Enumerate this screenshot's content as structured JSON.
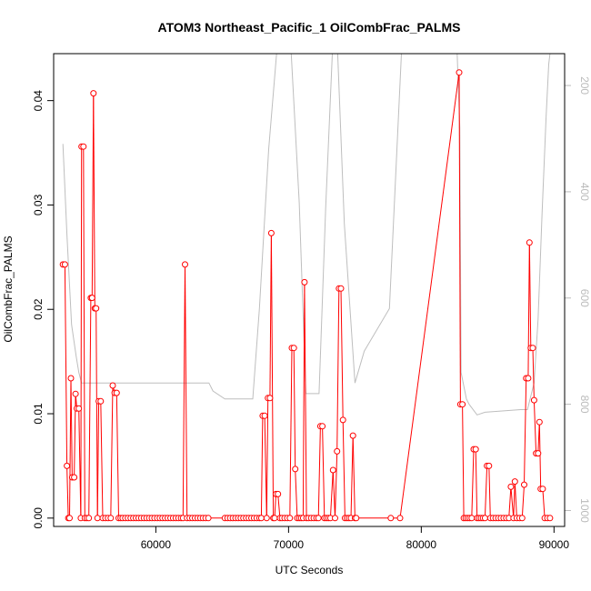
{
  "chart_data": {
    "type": "line",
    "title": "ATOM3 Northeast_Pacific_1 OilCombFrac_PALMS",
    "xlabel": "UTC Seconds",
    "ylabel": "OilCombFrac_PALMS",
    "xlim": [
      52300,
      90800
    ],
    "ylim": [
      -0.0008,
      0.0445
    ],
    "x_ticks": [
      60000,
      70000,
      80000,
      90000
    ],
    "x_tick_labels": [
      "60000",
      "70000",
      "80000",
      "90000"
    ],
    "y_ticks": [
      0.0,
      0.01,
      0.02,
      0.03,
      0.04
    ],
    "y_tick_labels": [
      "0.00",
      "0.01",
      "0.02",
      "0.03",
      "0.04"
    ],
    "y2_ticks": [
      200,
      400,
      600,
      800,
      1000
    ],
    "y2_tick_labels": [
      "200",
      "400",
      "600",
      "800",
      "1000"
    ],
    "y2_lim": [
      1030,
      140
    ],
    "grid": false,
    "legend": "none",
    "colors": {
      "series": "#ff0000",
      "secondary": "#bebebe",
      "axis": "#000000"
    },
    "series": [
      {
        "color": "#ff0000",
        "marker": "open-circle",
        "points": [
          [
            53000,
            0.0243
          ],
          [
            53150,
            0.0243
          ],
          [
            53300,
            0.005
          ],
          [
            53400,
            0.0
          ],
          [
            53500,
            0.0
          ],
          [
            53600,
            0.0134
          ],
          [
            53700,
            0.0039
          ],
          [
            53850,
            0.0039
          ],
          [
            53950,
            0.0119
          ],
          [
            54050,
            0.0105
          ],
          [
            54200,
            0.0105
          ],
          [
            54350,
            0.0
          ],
          [
            54400,
            0.0356
          ],
          [
            54550,
            0.0356
          ],
          [
            54650,
            0.0
          ],
          [
            54800,
            0.0
          ],
          [
            54950,
            0.0
          ],
          [
            55100,
            0.0211
          ],
          [
            55200,
            0.0211
          ],
          [
            55300,
            0.0407
          ],
          [
            55400,
            0.0201
          ],
          [
            55500,
            0.0201
          ],
          [
            55600,
            0.0
          ],
          [
            55700,
            0.0112
          ],
          [
            55850,
            0.0112
          ],
          [
            56000,
            0.0
          ],
          [
            56200,
            0.0
          ],
          [
            56400,
            0.0
          ],
          [
            56600,
            0.0
          ],
          [
            56750,
            0.0127
          ],
          [
            56900,
            0.012
          ],
          [
            57050,
            0.012
          ],
          [
            57200,
            0.0
          ],
          [
            57350,
            0.0
          ],
          [
            57500,
            0.0
          ],
          [
            57700,
            0.0
          ],
          [
            57900,
            0.0
          ],
          [
            58100,
            0.0
          ],
          [
            58300,
            0.0
          ],
          [
            58500,
            0.0
          ],
          [
            58700,
            0.0
          ],
          [
            58900,
            0.0
          ],
          [
            59100,
            0.0
          ],
          [
            59300,
            0.0
          ],
          [
            59500,
            0.0
          ],
          [
            59700,
            0.0
          ],
          [
            59900,
            0.0
          ],
          [
            60100,
            0.0
          ],
          [
            60300,
            0.0
          ],
          [
            60500,
            0.0
          ],
          [
            60700,
            0.0
          ],
          [
            60900,
            0.0
          ],
          [
            61100,
            0.0
          ],
          [
            61300,
            0.0
          ],
          [
            61500,
            0.0
          ],
          [
            61700,
            0.0
          ],
          [
            61900,
            0.0
          ],
          [
            62050,
            0.0
          ],
          [
            62200,
            0.0243
          ],
          [
            62350,
            0.0
          ],
          [
            62550,
            0.0
          ],
          [
            62750,
            0.0
          ],
          [
            62950,
            0.0
          ],
          [
            63150,
            0.0
          ],
          [
            63350,
            0.0
          ],
          [
            63550,
            0.0
          ],
          [
            63750,
            0.0
          ],
          [
            63950,
            0.0
          ],
          [
            65200,
            0.0
          ],
          [
            65400,
            0.0
          ],
          [
            65600,
            0.0
          ],
          [
            65800,
            0.0
          ],
          [
            66000,
            0.0
          ],
          [
            66200,
            0.0
          ],
          [
            66400,
            0.0
          ],
          [
            66600,
            0.0
          ],
          [
            66800,
            0.0
          ],
          [
            67000,
            0.0
          ],
          [
            67200,
            0.0
          ],
          [
            67400,
            0.0
          ],
          [
            67600,
            0.0
          ],
          [
            67800,
            0.0
          ],
          [
            67950,
            0.0
          ],
          [
            68050,
            0.0098
          ],
          [
            68200,
            0.0098
          ],
          [
            68350,
            0.0
          ],
          [
            68450,
            0.0115
          ],
          [
            68600,
            0.0115
          ],
          [
            68700,
            0.0273
          ],
          [
            68850,
            0.0
          ],
          [
            68950,
            0.0
          ],
          [
            69050,
            0.0023
          ],
          [
            69200,
            0.0023
          ],
          [
            69350,
            0.0
          ],
          [
            69500,
            0.0
          ],
          [
            69700,
            0.0
          ],
          [
            69900,
            0.0
          ],
          [
            70100,
            0.0
          ],
          [
            70250,
            0.0163
          ],
          [
            70400,
            0.0163
          ],
          [
            70500,
            0.0047
          ],
          [
            70650,
            0.0
          ],
          [
            70800,
            0.0
          ],
          [
            70950,
            0.0
          ],
          [
            71100,
            0.0
          ],
          [
            71200,
            0.0226
          ],
          [
            71350,
            0.0
          ],
          [
            71500,
            0.0
          ],
          [
            71700,
            0.0
          ],
          [
            71900,
            0.0
          ],
          [
            72100,
            0.0
          ],
          [
            72250,
            0.0
          ],
          [
            72400,
            0.0088
          ],
          [
            72550,
            0.0088
          ],
          [
            72700,
            0.0
          ],
          [
            72850,
            0.0
          ],
          [
            73000,
            0.0
          ],
          [
            73150,
            0.0
          ],
          [
            73350,
            0.0046
          ],
          [
            73500,
            0.0
          ],
          [
            73650,
            0.0064
          ],
          [
            73800,
            0.022
          ],
          [
            73950,
            0.022
          ],
          [
            74100,
            0.0094
          ],
          [
            74250,
            0.0
          ],
          [
            74400,
            0.0
          ],
          [
            74550,
            0.0
          ],
          [
            74700,
            0.0
          ],
          [
            74850,
            0.0079
          ],
          [
            75000,
            0.0
          ],
          [
            75100,
            0.0
          ],
          [
            77700,
            0.0
          ],
          [
            78400,
            0.0
          ],
          [
            82850,
            0.0427
          ],
          [
            82950,
            0.0109
          ],
          [
            83100,
            0.0109
          ],
          [
            83200,
            0.0
          ],
          [
            83350,
            0.0
          ],
          [
            83500,
            0.0
          ],
          [
            83650,
            0.0
          ],
          [
            83800,
            0.0
          ],
          [
            83950,
            0.0066
          ],
          [
            84100,
            0.0066
          ],
          [
            84200,
            0.0
          ],
          [
            84350,
            0.0
          ],
          [
            84500,
            0.0
          ],
          [
            84650,
            0.0
          ],
          [
            84800,
            0.0
          ],
          [
            84950,
            0.005
          ],
          [
            85100,
            0.005
          ],
          [
            85200,
            0.0
          ],
          [
            85400,
            0.0
          ],
          [
            85600,
            0.0
          ],
          [
            85800,
            0.0
          ],
          [
            86000,
            0.0
          ],
          [
            86200,
            0.0
          ],
          [
            86400,
            0.0
          ],
          [
            86600,
            0.0
          ],
          [
            86750,
            0.003
          ],
          [
            86950,
            0.0
          ],
          [
            87050,
            0.0035
          ],
          [
            87200,
            0.0
          ],
          [
            87400,
            0.0
          ],
          [
            87600,
            0.0
          ],
          [
            87750,
            0.0032
          ],
          [
            87900,
            0.0134
          ],
          [
            88050,
            0.0134
          ],
          [
            88150,
            0.0264
          ],
          [
            88250,
            0.0163
          ],
          [
            88400,
            0.0163
          ],
          [
            88500,
            0.0113
          ],
          [
            88650,
            0.0062
          ],
          [
            88800,
            0.0062
          ],
          [
            88900,
            0.0092
          ],
          [
            89000,
            0.0028
          ],
          [
            89150,
            0.0028
          ],
          [
            89300,
            0.0
          ],
          [
            89500,
            0.0
          ],
          [
            89700,
            0.0
          ]
        ]
      },
      {
        "color": "#bebebe",
        "axis": "right",
        "points": [
          [
            53000,
            310
          ],
          [
            53300,
            480
          ],
          [
            53650,
            650
          ],
          [
            54000,
            710
          ],
          [
            54200,
            740
          ],
          [
            54400,
            760
          ],
          [
            55000,
            760
          ],
          [
            56000,
            760
          ],
          [
            60000,
            760
          ],
          [
            64000,
            760
          ],
          [
            64300,
            775
          ],
          [
            65200,
            790
          ],
          [
            67300,
            790
          ],
          [
            67800,
            620
          ],
          [
            68500,
            320
          ],
          [
            69100,
            140
          ],
          [
            70200,
            140
          ],
          [
            70800,
            420
          ],
          [
            71300,
            780
          ],
          [
            72300,
            780
          ],
          [
            72800,
            430
          ],
          [
            73300,
            140
          ],
          [
            73700,
            140
          ],
          [
            74200,
            460
          ],
          [
            75000,
            760
          ],
          [
            75700,
            700
          ],
          [
            77600,
            620
          ],
          [
            78500,
            140
          ],
          [
            82700,
            140
          ],
          [
            82900,
            280
          ],
          [
            83000,
            740
          ],
          [
            83400,
            790
          ],
          [
            83600,
            800
          ],
          [
            84200,
            820
          ],
          [
            84800,
            815
          ],
          [
            87500,
            810
          ],
          [
            88000,
            810
          ],
          [
            88500,
            760
          ],
          [
            88800,
            640
          ],
          [
            89100,
            440
          ],
          [
            89400,
            260
          ],
          [
            89600,
            160
          ],
          [
            89700,
            140
          ]
        ]
      }
    ]
  }
}
